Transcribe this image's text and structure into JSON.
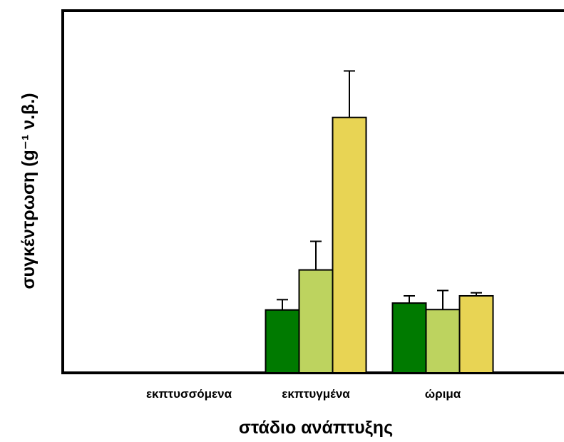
{
  "chart_data": {
    "type": "bar",
    "title": "",
    "xlabel": "στάδιο ανάπτυξης",
    "ylabel": "συγκέντρωση (g⁻¹ ν.β.)",
    "categories": [
      "εκπτυσσόμενα",
      "εκπτυγμένα",
      "ώριμα"
    ],
    "series": [
      {
        "color": "#007A00",
        "values": [
          null,
          1.65,
          1.83
        ],
        "errors": [
          null,
          0.27,
          0.19
        ]
      },
      {
        "color": "#BDD35F",
        "values": [
          null,
          2.7,
          1.66
        ],
        "errors": [
          null,
          0.75,
          0.5
        ]
      },
      {
        "color": "#E8D454",
        "values": [
          null,
          6.7,
          2.02
        ],
        "errors": [
          null,
          1.22,
          0.08
        ]
      }
    ],
    "ylim": [
      0,
      9.5
    ],
    "grid": false,
    "legend": "none",
    "y_ticks_shown": false
  }
}
